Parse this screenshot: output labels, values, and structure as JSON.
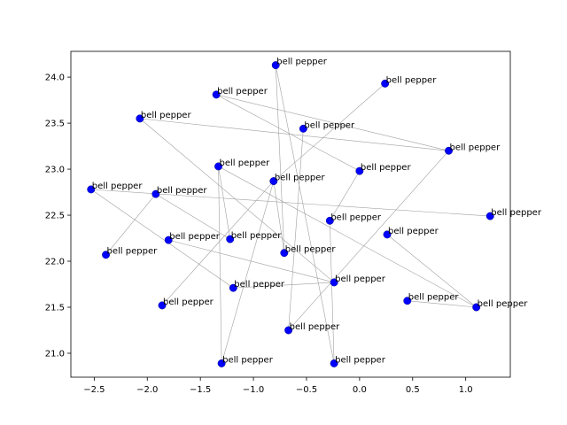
{
  "chart_data": {
    "type": "scatter",
    "title": "",
    "xlabel": "",
    "ylabel": "",
    "xlim": [
      -2.72,
      1.42
    ],
    "ylim": [
      20.74,
      24.28
    ],
    "xticks": [
      -2.5,
      -2.0,
      -1.5,
      -1.0,
      -0.5,
      0.0,
      0.5,
      1.0
    ],
    "xtick_labels": [
      "−2.5",
      "−2.0",
      "−1.5",
      "−1.0",
      "−0.5",
      "0.0",
      "0.5",
      "1.0"
    ],
    "yticks": [
      21.0,
      21.5,
      22.0,
      22.5,
      23.0,
      23.5,
      24.0
    ],
    "ytick_labels": [
      "21.0",
      "21.5",
      "22.0",
      "22.5",
      "23.0",
      "23.5",
      "24.0"
    ],
    "grid": false,
    "point_color": "#0000ff",
    "edge_color": "#a0a0a0",
    "points": [
      {
        "x": -0.79,
        "y": 24.13,
        "label": "bell pepper"
      },
      {
        "x": 0.24,
        "y": 23.93,
        "label": "bell pepper"
      },
      {
        "x": -1.35,
        "y": 23.81,
        "label": "bell pepper"
      },
      {
        "x": -2.07,
        "y": 23.55,
        "label": "bell pepper"
      },
      {
        "x": -0.53,
        "y": 23.44,
        "label": "bell pepper"
      },
      {
        "x": 0.84,
        "y": 23.2,
        "label": "bell pepper"
      },
      {
        "x": -1.33,
        "y": 23.03,
        "label": "bell pepper"
      },
      {
        "x": 0.0,
        "y": 22.98,
        "label": "bell pepper"
      },
      {
        "x": -0.81,
        "y": 22.87,
        "label": "bell pepper"
      },
      {
        "x": -2.53,
        "y": 22.78,
        "label": "bell pepper"
      },
      {
        "x": -1.92,
        "y": 22.73,
        "label": "bell pepper"
      },
      {
        "x": 1.23,
        "y": 22.49,
        "label": "bell pepper"
      },
      {
        "x": -0.28,
        "y": 22.44,
        "label": "bell pepper"
      },
      {
        "x": 0.26,
        "y": 22.29,
        "label": "bell pepper"
      },
      {
        "x": -1.22,
        "y": 22.24,
        "label": "bell pepper"
      },
      {
        "x": -1.8,
        "y": 22.23,
        "label": "bell pepper"
      },
      {
        "x": -0.71,
        "y": 22.09,
        "label": "bell pepper"
      },
      {
        "x": -2.39,
        "y": 22.07,
        "label": "bell pepper"
      },
      {
        "x": -0.24,
        "y": 21.77,
        "label": "bell pepper"
      },
      {
        "x": -1.19,
        "y": 21.71,
        "label": "bell pepper"
      },
      {
        "x": 0.45,
        "y": 21.57,
        "label": "bell pepper"
      },
      {
        "x": 1.1,
        "y": 21.5,
        "label": "bell pepper"
      },
      {
        "x": -1.86,
        "y": 21.52,
        "label": "bell pepper"
      },
      {
        "x": -0.67,
        "y": 21.25,
        "label": "bell pepper"
      },
      {
        "x": -1.3,
        "y": 20.89,
        "label": "bell pepper"
      },
      {
        "x": -0.24,
        "y": 20.89,
        "label": "bell pepper"
      }
    ],
    "edges": [
      [
        0,
        16
      ],
      [
        0,
        25
      ],
      [
        1,
        8
      ],
      [
        2,
        7
      ],
      [
        2,
        5
      ],
      [
        3,
        5
      ],
      [
        3,
        18
      ],
      [
        4,
        23
      ],
      [
        5,
        23
      ],
      [
        6,
        24
      ],
      [
        6,
        21
      ],
      [
        7,
        12
      ],
      [
        8,
        22
      ],
      [
        8,
        24
      ],
      [
        9,
        11
      ],
      [
        9,
        19
      ],
      [
        10,
        14
      ],
      [
        12,
        25
      ],
      [
        13,
        21
      ],
      [
        14,
        6
      ],
      [
        15,
        18
      ],
      [
        16,
        8
      ],
      [
        17,
        10
      ],
      [
        18,
        19
      ],
      [
        20,
        21
      ]
    ]
  }
}
